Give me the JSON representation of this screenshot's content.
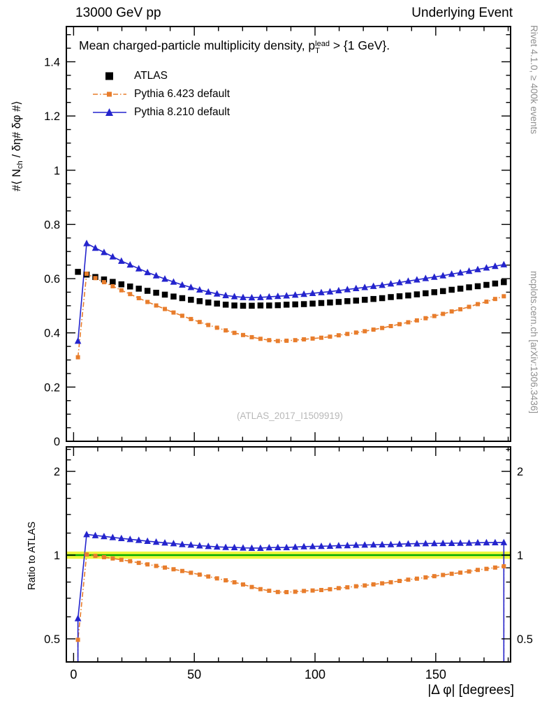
{
  "header": {
    "left": "13000 GeV pp",
    "right": "Underlying Event"
  },
  "plot": {
    "title": {
      "prefix": "Mean charged-particle multiplicity density, p",
      "sup": "lead",
      "sub": "T",
      "suffix": " > {1 GeV}."
    },
    "ylabel_main": {
      "prefix": "#⟨ N",
      "sub": "ch",
      "suffix": " / δη# δφ #⟩"
    },
    "ylabel_ratio": "Ratio to ATLAS",
    "xlabel": "|Δ φ| [degrees]",
    "watermark": "(ATLAS_2017_I1509919)"
  },
  "side_notes": {
    "top": "Rivet 4.1.0, ≥ 400k events",
    "bottom": "mcplots.cern.ch [arXiv:1306.3436]"
  },
  "chart_data": {
    "type": "line",
    "title": "Mean charged-particle multiplicity density, pT^lead > {1 GeV}.",
    "xlabel": "|Δ φ| [degrees]",
    "ylabel": "⟨ N_ch / δη δφ ⟩",
    "legend_position": "top-left",
    "x": [
      1.8,
      5.4,
      9,
      12.6,
      16.2,
      19.8,
      23.4,
      27,
      30.6,
      34.2,
      37.8,
      41.4,
      45,
      48.6,
      52.2,
      55.8,
      59.4,
      63,
      66.6,
      70.2,
      73.8,
      77.4,
      81,
      84.6,
      88.2,
      91.8,
      95.4,
      99,
      102.6,
      106.2,
      109.8,
      113.4,
      117,
      120.6,
      124.2,
      127.8,
      131.4,
      135,
      138.6,
      142.2,
      145.8,
      149.4,
      153,
      156.6,
      160.2,
      163.8,
      167.4,
      171,
      174.6,
      178.2
    ],
    "series": [
      {
        "name": "ATLAS",
        "color": "#000000",
        "marker": "square",
        "marker_size": 8.5,
        "line": "none",
        "values": [
          0.625,
          0.615,
          0.606,
          0.597,
          0.588,
          0.579,
          0.571,
          0.563,
          0.555,
          0.548,
          0.541,
          0.534,
          0.528,
          0.522,
          0.517,
          0.512,
          0.508,
          0.504,
          0.501,
          0.5,
          0.5,
          0.501,
          0.501,
          0.502,
          0.504,
          0.505,
          0.506,
          0.508,
          0.51,
          0.512,
          0.514,
          0.517,
          0.519,
          0.522,
          0.525,
          0.528,
          0.532,
          0.535,
          0.538,
          0.542,
          0.546,
          0.55,
          0.554,
          0.559,
          0.563,
          0.568,
          0.572,
          0.577,
          0.582,
          0.587
        ]
      },
      {
        "name": "Pythia 6.423 default",
        "color": "#e87d2c",
        "marker": "square",
        "marker_size": 6,
        "line": "dashdot",
        "values": [
          0.31,
          0.618,
          0.602,
          0.587,
          0.572,
          0.557,
          0.543,
          0.528,
          0.514,
          0.501,
          0.488,
          0.475,
          0.463,
          0.451,
          0.44,
          0.429,
          0.419,
          0.409,
          0.4,
          0.392,
          0.384,
          0.378,
          0.373,
          0.37,
          0.371,
          0.373,
          0.376,
          0.379,
          0.382,
          0.386,
          0.391,
          0.396,
          0.401,
          0.406,
          0.412,
          0.418,
          0.425,
          0.432,
          0.439,
          0.446,
          0.454,
          0.462,
          0.47,
          0.479,
          0.487,
          0.496,
          0.506,
          0.515,
          0.525,
          0.535
        ]
      },
      {
        "name": "Pythia 8.210 default",
        "color": "#2424cd",
        "marker": "triangle",
        "marker_size": 8,
        "line": "solid",
        "values": [
          0.37,
          0.73,
          0.713,
          0.697,
          0.681,
          0.665,
          0.651,
          0.637,
          0.623,
          0.611,
          0.599,
          0.588,
          0.577,
          0.568,
          0.559,
          0.551,
          0.544,
          0.538,
          0.534,
          0.531,
          0.53,
          0.531,
          0.533,
          0.535,
          0.537,
          0.54,
          0.543,
          0.546,
          0.549,
          0.552,
          0.556,
          0.56,
          0.564,
          0.568,
          0.572,
          0.576,
          0.581,
          0.586,
          0.591,
          0.596,
          0.601,
          0.606,
          0.611,
          0.617,
          0.622,
          0.628,
          0.634,
          0.64,
          0.646,
          0.652
        ]
      }
    ],
    "axes": {
      "x": {
        "range": [
          -3,
          181
        ],
        "major_ticks": [
          0,
          50,
          100,
          150
        ],
        "minor_step": 10
      },
      "y_main": {
        "range": [
          0,
          1.53
        ],
        "major_ticks": [
          0,
          0.2,
          0.4,
          0.6,
          0.8,
          1,
          1.2,
          1.4
        ],
        "minor_step": 0.05
      },
      "y_ratio": {
        "scale": "log",
        "range": [
          0.413,
          2.45
        ],
        "major_ticks": [
          0.5,
          1,
          2
        ],
        "minor_ticks": [
          0.6,
          0.7,
          0.8,
          0.9,
          1.2,
          1.4,
          1.6,
          1.8,
          2.2,
          2.4
        ]
      }
    },
    "ratio": {
      "label": "Ratio to ATLAS",
      "reference": "ATLAS",
      "band": [
        0.97,
        1.03
      ],
      "band_color": "#f0f73c",
      "line_color": "#00aa00"
    }
  }
}
